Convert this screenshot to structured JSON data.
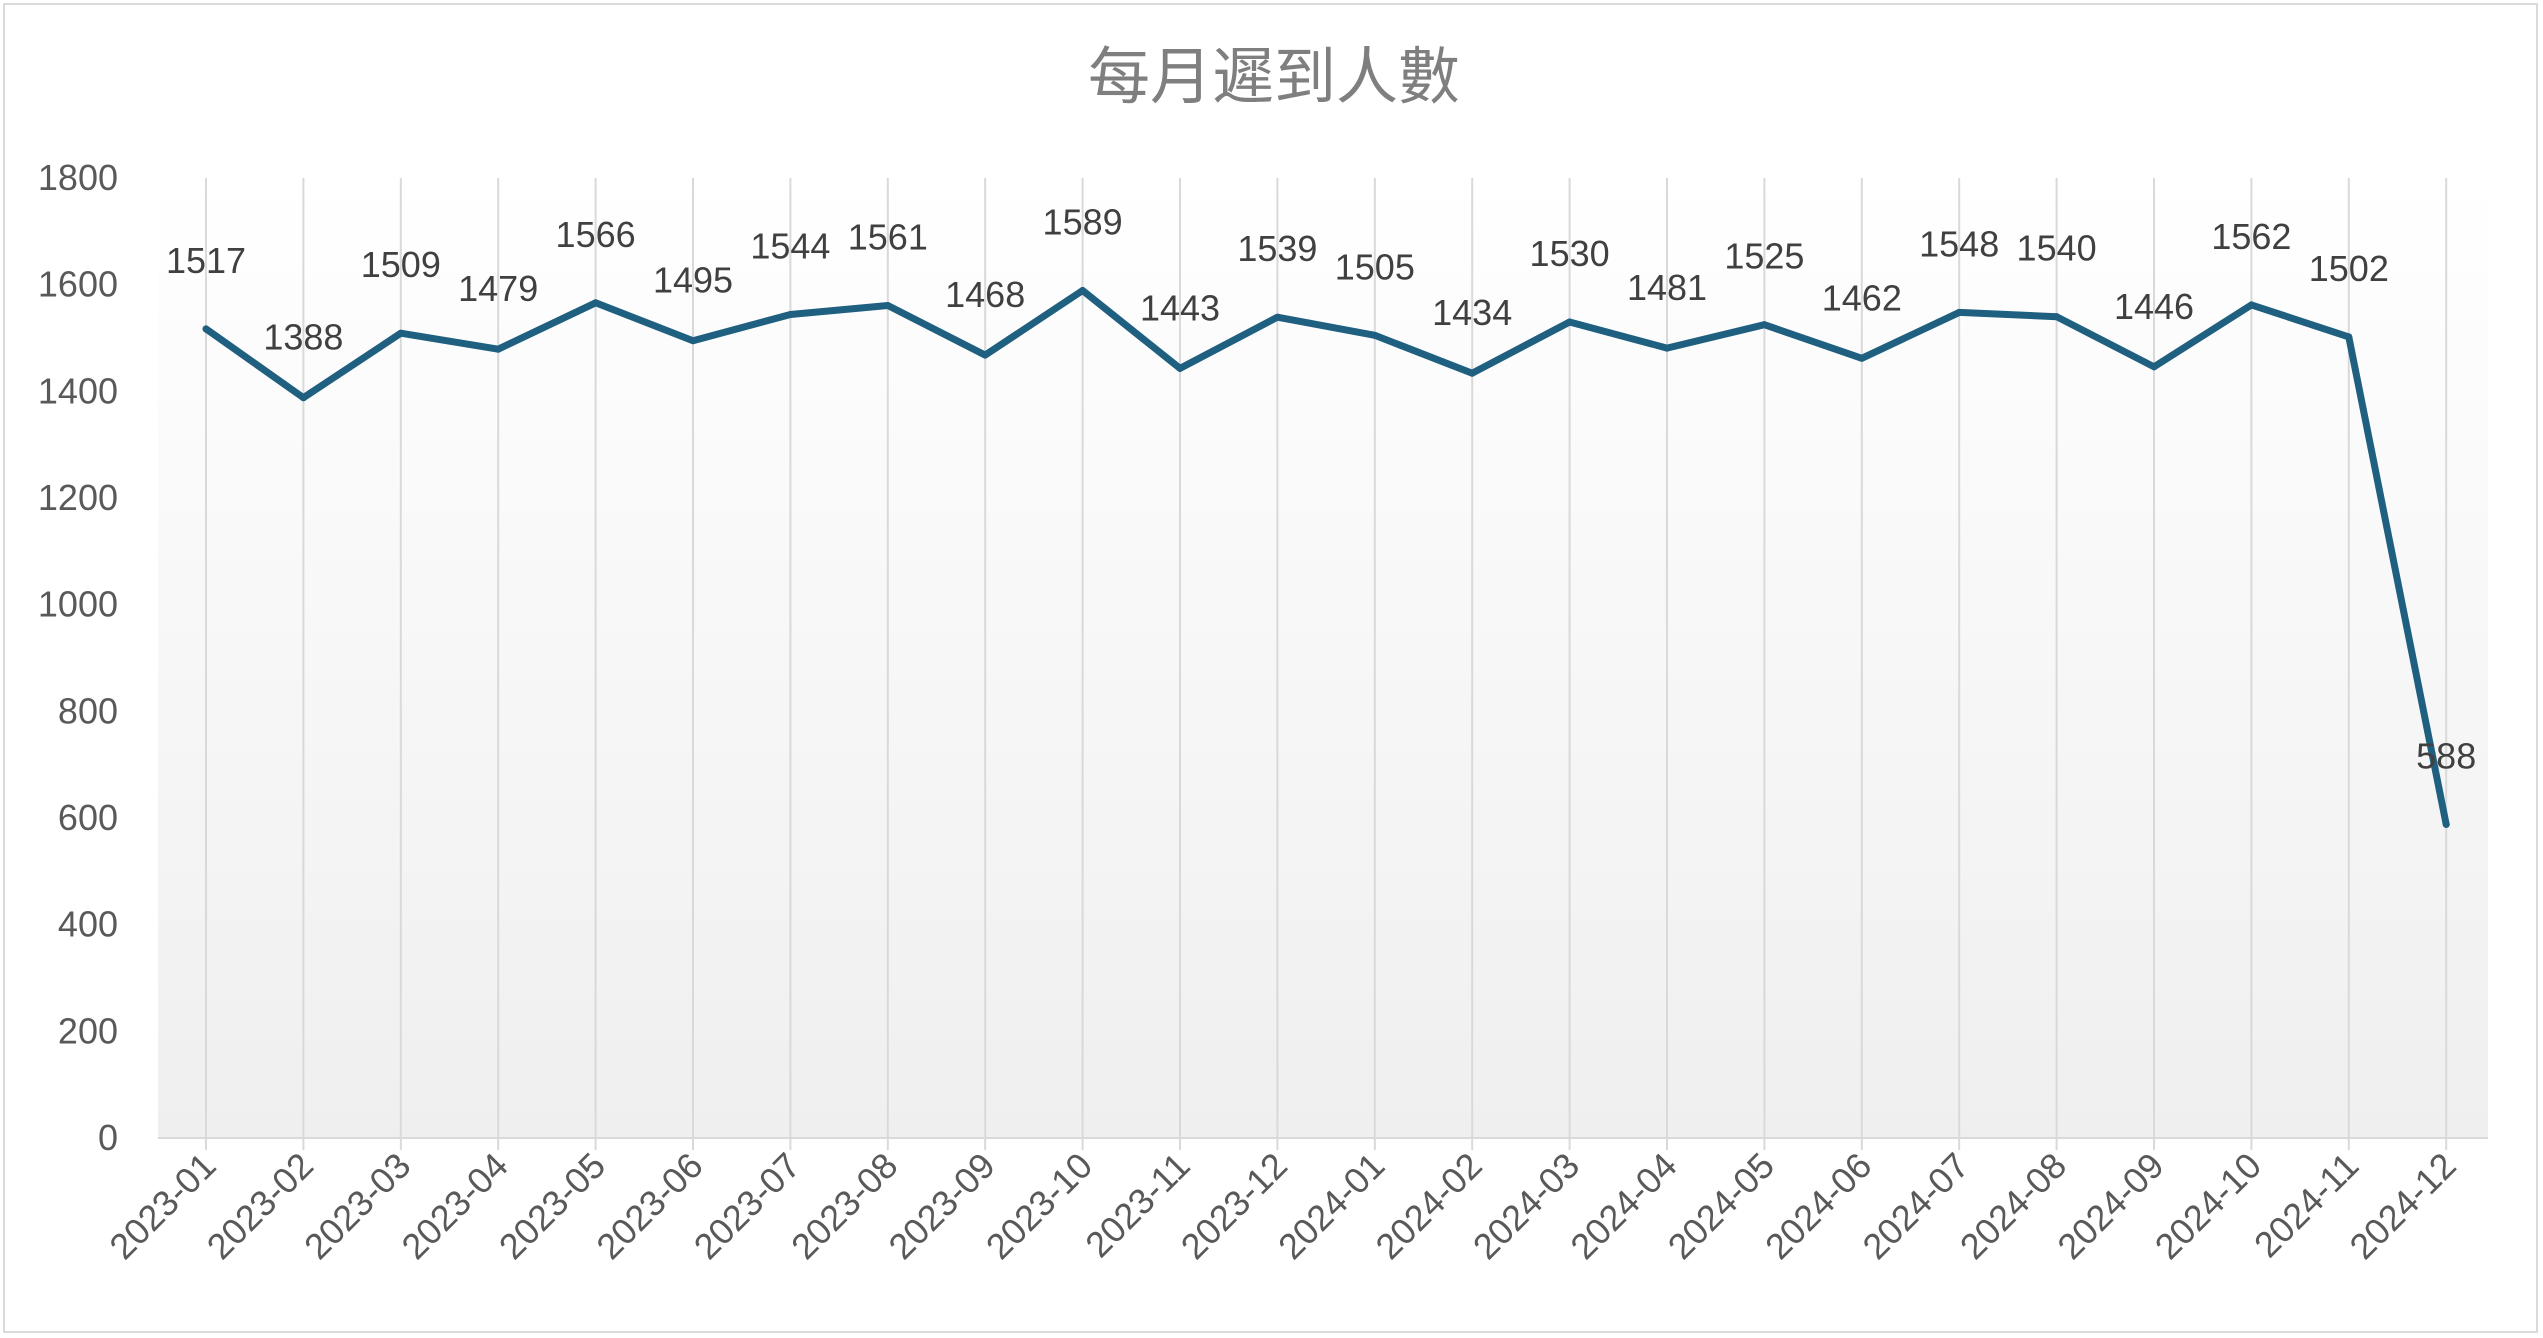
{
  "chart_data": {
    "type": "line",
    "title": "每月遲到人數",
    "xlabel": "",
    "ylabel": "",
    "ylim": [
      0,
      1800
    ],
    "yticks": [
      0,
      200,
      400,
      600,
      800,
      1000,
      1200,
      1400,
      1600,
      1800
    ],
    "grid": "vertical",
    "legend": "none",
    "categories": [
      "2023-01",
      "2023-02",
      "2023-03",
      "2023-04",
      "2023-05",
      "2023-06",
      "2023-07",
      "2023-08",
      "2023-09",
      "2023-10",
      "2023-11",
      "2023-12",
      "2024-01",
      "2024-02",
      "2024-03",
      "2024-04",
      "2024-05",
      "2024-06",
      "2024-07",
      "2024-08",
      "2024-09",
      "2024-10",
      "2024-11",
      "2024-12"
    ],
    "series": [
      {
        "values": [
          1517,
          1388,
          1509,
          1479,
          1566,
          1495,
          1544,
          1561,
          1468,
          1589,
          1443,
          1539,
          1505,
          1434,
          1530,
          1481,
          1525,
          1462,
          1548,
          1540,
          1446,
          1562,
          1502,
          588
        ],
        "color": "#1f5f80"
      }
    ]
  }
}
